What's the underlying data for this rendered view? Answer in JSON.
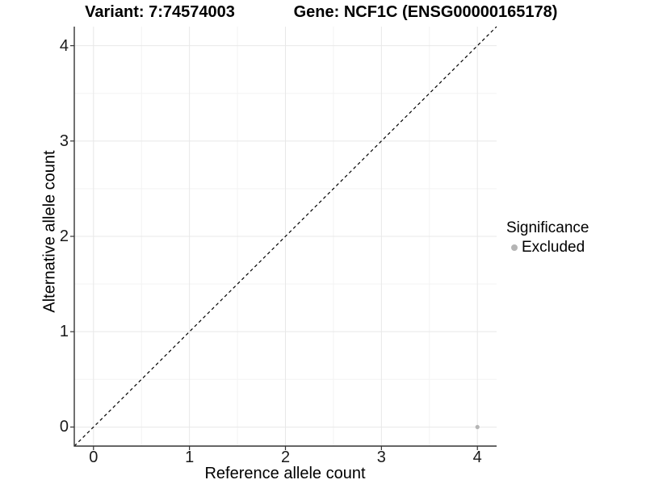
{
  "titles": {
    "variant": "Variant: 7:74574003",
    "gene": "Gene: NCF1C (ENSG00000165178)"
  },
  "axes": {
    "x_label": "Reference allele count",
    "y_label": "Alternative allele count"
  },
  "legend": {
    "title": "Significance",
    "items": [
      {
        "label": "Excluded",
        "color": "#b5b5b5"
      }
    ]
  },
  "chart_data": {
    "type": "scatter",
    "title": "Variant: 7:74574003   Gene: NCF1C (ENSG00000165178)",
    "xlabel": "Reference allele count",
    "ylabel": "Alternative allele count",
    "xlim": [
      -0.2,
      4.2
    ],
    "ylim": [
      -0.2,
      4.2
    ],
    "x_ticks": [
      0,
      1,
      2,
      3,
      4
    ],
    "y_ticks": [
      0,
      1,
      2,
      3,
      4
    ],
    "x_minor_ticks": [
      0.5,
      1.5,
      2.5,
      3.5
    ],
    "y_minor_ticks": [
      0.5,
      1.5,
      2.5,
      3.5
    ],
    "grid": true,
    "legend_position": "right",
    "series": [
      {
        "name": "Excluded",
        "color": "#b5b5b5",
        "points": [
          {
            "x": 4,
            "y": 0
          }
        ]
      }
    ],
    "reference_line": {
      "kind": "identity",
      "style": "dashed",
      "color": "#000000",
      "from": [
        -0.2,
        -0.2
      ],
      "to": [
        4.2,
        4.2
      ]
    },
    "colors": {
      "major_grid": "#e8e8e8",
      "minor_grid": "#f3f3f3",
      "axis_line": "#333333",
      "point": "#b5b5b5"
    }
  }
}
